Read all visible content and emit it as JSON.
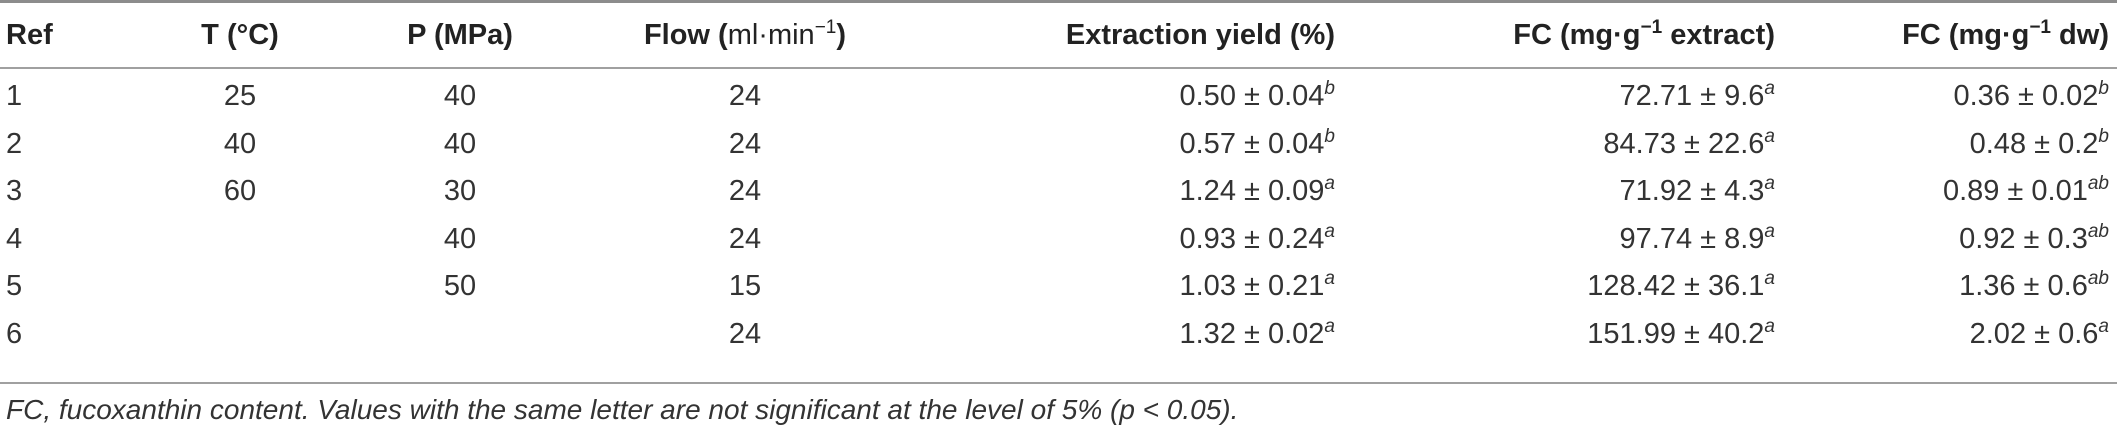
{
  "table": {
    "headers": {
      "ref": "Ref",
      "temp": "T (°C)",
      "pressure": "P (MPa)",
      "flow_prefix": "Flow (",
      "flow_unit": "ml·min",
      "flow_sup": "−1",
      "flow_suffix": ")",
      "extraction_yield": "Extraction yield (%)",
      "fc_extract_prefix": "FC (mg·g",
      "fc_extract_sup": "−1",
      "fc_extract_suffix": " extract)",
      "fc_dw_prefix": "FC (mg·g",
      "fc_dw_sup": "−1",
      "fc_dw_suffix": " dw)"
    },
    "rows": [
      {
        "ref": "1",
        "t": "25",
        "p": "40",
        "flow": "24",
        "yield": "0.50 ± 0.04",
        "yield_sup": "b",
        "fc_extract": "72.71 ± 9.6",
        "fc_extract_sup": "a",
        "fc_dw": "0.36 ± 0.02",
        "fc_dw_sup": "b"
      },
      {
        "ref": "2",
        "t": "40",
        "p": "40",
        "flow": "24",
        "yield": "0.57 ± 0.04",
        "yield_sup": "b",
        "fc_extract": "84.73 ± 22.6",
        "fc_extract_sup": "a",
        "fc_dw": "0.48 ± 0.2",
        "fc_dw_sup": "b"
      },
      {
        "ref": "3",
        "t": "60",
        "p": "30",
        "flow": "24",
        "yield": "1.24 ± 0.09",
        "yield_sup": "a",
        "fc_extract": "71.92 ± 4.3",
        "fc_extract_sup": "a",
        "fc_dw": "0.89 ± 0.01",
        "fc_dw_sup": "ab"
      },
      {
        "ref": "4",
        "t": "",
        "p": "40",
        "flow": "24",
        "yield": "0.93 ± 0.24",
        "yield_sup": "a",
        "fc_extract": "97.74 ± 8.9",
        "fc_extract_sup": "a",
        "fc_dw": "0.92 ± 0.3",
        "fc_dw_sup": "ab"
      },
      {
        "ref": "5",
        "t": "",
        "p": "50",
        "flow": "15",
        "yield": "1.03 ± 0.21",
        "yield_sup": "a",
        "fc_extract": "128.42 ± 36.1",
        "fc_extract_sup": "a",
        "fc_dw": "1.36 ± 0.6",
        "fc_dw_sup": "ab"
      },
      {
        "ref": "6",
        "t": "",
        "p": "",
        "flow": "24",
        "yield": "1.32 ± 0.02",
        "yield_sup": "a",
        "fc_extract": "151.99 ± 40.2",
        "fc_extract_sup": "a",
        "fc_dw": "2.02 ± 0.6",
        "fc_dw_sup": "a"
      }
    ]
  },
  "footnote": "FC, fucoxanthin content. Values with the same letter are not significant at the level of 5% (p < 0.05)."
}
